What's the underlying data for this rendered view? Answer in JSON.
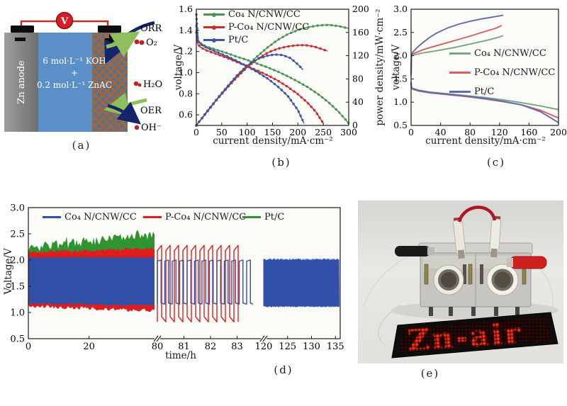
{
  "figure": {
    "captions": {
      "a": "(a)",
      "b": "(b)",
      "c": "(c)",
      "d": "(d)",
      "e": "(e)"
    }
  },
  "panel_a": {
    "anode_label": "Zn anode",
    "voltmeter_label": "V",
    "electrolyte": [
      "6 mol·L⁻¹ KOH",
      "+",
      "0.2 mol·L⁻¹ ZnAC"
    ],
    "labels": {
      "orr": "ORR",
      "o2": "O₂",
      "h2o": "H₂O",
      "oer": "OER",
      "oh": "OH⁻"
    },
    "colors": {
      "anode": "#8d8d8d",
      "electrolyte": "#5b8fc8",
      "mesh_bg": "#4b749c",
      "mesh_fiber": "#a2663c",
      "wire": "#c03028",
      "meter": "#d41f26",
      "arrow_green": "#8fbf5c",
      "arrow_navy": "#16246b",
      "dot_red": "#c31f1f"
    }
  },
  "chart_data": [
    {
      "id": "b",
      "type": "line",
      "xlabel": "current density/mA·cm⁻²",
      "ylabel": "voltage/V",
      "y2label": "power density/mW·cm⁻²",
      "xlim": [
        0,
        300
      ],
      "ylim": [
        0.5,
        1.6
      ],
      "y2lim": [
        0,
        200
      ],
      "x_ticks": [
        "0",
        "50",
        "100",
        "150",
        "200",
        "250",
        "300"
      ],
      "y_ticks": [
        "0.6",
        "0.8",
        "1.0",
        "1.2",
        "1.4",
        "1.6"
      ],
      "y2_ticks": [
        "0",
        "40",
        "80",
        "120",
        "160",
        "200"
      ],
      "legend": [
        "Co₄ N/CNW/CC",
        "P-Co₄ N/CNW/CC",
        "Pt/C"
      ],
      "colors": [
        "#4a9450",
        "#cc2b2b",
        "#3c55a5"
      ],
      "series": [
        {
          "name": "Co₄ N/CNW/CC voltage",
          "axis": "y",
          "color": "#4a9450",
          "points": [
            [
              0,
              1.44
            ],
            [
              3,
              1.31
            ],
            [
              8,
              1.28
            ],
            [
              20,
              1.245
            ],
            [
              40,
              1.215
            ],
            [
              60,
              1.185
            ],
            [
              80,
              1.15
            ],
            [
              100,
              1.12
            ],
            [
              120,
              1.085
            ],
            [
              140,
              1.05
            ],
            [
              160,
              1.01
            ],
            [
              180,
              0.965
            ],
            [
              200,
              0.915
            ],
            [
              220,
              0.86
            ],
            [
              240,
              0.795
            ],
            [
              260,
              0.72
            ],
            [
              280,
              0.63
            ],
            [
              300,
              0.52
            ]
          ]
        },
        {
          "name": "P-Co₄ N/CNW/CC voltage",
          "axis": "y",
          "color": "#cc2b2b",
          "points": [
            [
              0,
              1.38
            ],
            [
              3,
              1.27
            ],
            [
              8,
              1.24
            ],
            [
              20,
              1.21
            ],
            [
              40,
              1.175
            ],
            [
              60,
              1.14
            ],
            [
              80,
              1.1
            ],
            [
              100,
              1.06
            ],
            [
              120,
              1.02
            ],
            [
              140,
              0.975
            ],
            [
              160,
              0.925
            ],
            [
              180,
              0.865
            ],
            [
              200,
              0.795
            ],
            [
              220,
              0.71
            ],
            [
              235,
              0.63
            ],
            [
              250,
              0.52
            ]
          ]
        },
        {
          "name": "Pt/C voltage",
          "axis": "y",
          "color": "#3c55a5",
          "points": [
            [
              0,
              1.55
            ],
            [
              3,
              1.3
            ],
            [
              8,
              1.27
            ],
            [
              20,
              1.235
            ],
            [
              40,
              1.195
            ],
            [
              60,
              1.155
            ],
            [
              80,
              1.11
            ],
            [
              100,
              1.06
            ],
            [
              120,
              1.005
            ],
            [
              140,
              0.945
            ],
            [
              160,
              0.87
            ],
            [
              180,
              0.78
            ],
            [
              200,
              0.645
            ],
            [
              212,
              0.52
            ]
          ]
        },
        {
          "name": "Co₄ N/CNW/CC power",
          "axis": "y2",
          "color": "#4a9450",
          "points": [
            [
              0,
              0
            ],
            [
              20,
              22
            ],
            [
              40,
              44
            ],
            [
              60,
              64
            ],
            [
              80,
              84
            ],
            [
              100,
              102
            ],
            [
              120,
              119
            ],
            [
              140,
              134
            ],
            [
              160,
              147
            ],
            [
              180,
              157
            ],
            [
              200,
              164
            ],
            [
              220,
              169
            ],
            [
              240,
              172
            ],
            [
              260,
              173
            ],
            [
              280,
              171
            ],
            [
              300,
              167
            ]
          ]
        },
        {
          "name": "P-Co₄ N/CNW/CC power",
          "axis": "y2",
          "color": "#cc2b2b",
          "points": [
            [
              0,
              0
            ],
            [
              20,
              22
            ],
            [
              40,
              44
            ],
            [
              60,
              64
            ],
            [
              80,
              83
            ],
            [
              100,
              100
            ],
            [
              120,
              114
            ],
            [
              140,
              125
            ],
            [
              160,
              132
            ],
            [
              180,
              136
            ],
            [
              200,
              138
            ],
            [
              215,
              138
            ],
            [
              230,
              136
            ],
            [
              245,
              132
            ],
            [
              258,
              128
            ]
          ]
        },
        {
          "name": "Pt/C power",
          "axis": "y2",
          "color": "#3c55a5",
          "points": [
            [
              0,
              0
            ],
            [
              20,
              23
            ],
            [
              40,
              45
            ],
            [
              60,
              66
            ],
            [
              80,
              86
            ],
            [
              100,
              103
            ],
            [
              120,
              114
            ],
            [
              140,
              120
            ],
            [
              155,
              122
            ],
            [
              170,
              121
            ],
            [
              185,
              116
            ],
            [
              200,
              105
            ],
            [
              210,
              96
            ]
          ]
        }
      ]
    },
    {
      "id": "c",
      "type": "line",
      "xlabel": "current density/mA·cm⁻²",
      "ylabel": "voltage/V",
      "xlim": [
        0,
        200
      ],
      "ylim": [
        0.5,
        3.0
      ],
      "x_ticks": [
        "0",
        "40",
        "80",
        "120",
        "160",
        "200"
      ],
      "y_ticks": [
        "0.5",
        "1.0",
        "1.5",
        "2.0",
        "2.5",
        "3.0"
      ],
      "legend": [
        "Co₄ N/CNW/CC",
        "P-Co₄ N/CNW/CC",
        "Pt/C"
      ],
      "colors": [
        "#78a87a",
        "#d95f5f",
        "#5f6ab0"
      ],
      "series": [
        {
          "name": "Co₄ N/CNW/CC charge",
          "color": "#78a87a",
          "points": [
            [
              0,
              1.55
            ],
            [
              0.5,
              1.98
            ],
            [
              2,
              2.01
            ],
            [
              10,
              2.04
            ],
            [
              20,
              2.07
            ],
            [
              40,
              2.12
            ],
            [
              60,
              2.18
            ],
            [
              80,
              2.25
            ],
            [
              100,
              2.32
            ],
            [
              115,
              2.38
            ],
            [
              125,
              2.43
            ]
          ]
        },
        {
          "name": "P-Co₄ N/CNW/CC charge",
          "color": "#d95f5f",
          "points": [
            [
              0,
              1.6
            ],
            [
              0.5,
              2.0
            ],
            [
              2,
              2.04
            ],
            [
              10,
              2.09
            ],
            [
              20,
              2.15
            ],
            [
              40,
              2.24
            ],
            [
              60,
              2.33
            ],
            [
              80,
              2.42
            ],
            [
              100,
              2.52
            ],
            [
              115,
              2.59
            ],
            [
              123,
              2.65
            ]
          ]
        },
        {
          "name": "Pt/C charge",
          "color": "#5f6ab0",
          "points": [
            [
              0,
              1.6
            ],
            [
              0.5,
              2.0
            ],
            [
              2,
              2.07
            ],
            [
              8,
              2.17
            ],
            [
              15,
              2.27
            ],
            [
              25,
              2.39
            ],
            [
              35,
              2.49
            ],
            [
              50,
              2.6
            ],
            [
              65,
              2.68
            ],
            [
              80,
              2.74
            ],
            [
              95,
              2.79
            ],
            [
              110,
              2.83
            ],
            [
              125,
              2.87
            ]
          ]
        },
        {
          "name": "Co₄ N/CNW/CC discharge",
          "color": "#78a87a",
          "points": [
            [
              0,
              1.44
            ],
            [
              0.5,
              1.33
            ],
            [
              2,
              1.3
            ],
            [
              10,
              1.26
            ],
            [
              25,
              1.22
            ],
            [
              50,
              1.18
            ],
            [
              75,
              1.14
            ],
            [
              100,
              1.1
            ],
            [
              125,
              1.05
            ],
            [
              150,
              0.99
            ],
            [
              175,
              0.92
            ],
            [
              200,
              0.84
            ]
          ]
        },
        {
          "name": "P-Co₄ N/CNW/CC discharge",
          "color": "#d95f5f",
          "points": [
            [
              0,
              1.42
            ],
            [
              0.5,
              1.31
            ],
            [
              2,
              1.28
            ],
            [
              10,
              1.24
            ],
            [
              25,
              1.2
            ],
            [
              50,
              1.16
            ],
            [
              75,
              1.12
            ],
            [
              100,
              1.07
            ],
            [
              125,
              1.01
            ],
            [
              150,
              0.94
            ],
            [
              175,
              0.83
            ],
            [
              200,
              0.66
            ]
          ]
        },
        {
          "name": "Pt/C discharge",
          "color": "#5f6ab0",
          "points": [
            [
              0,
              1.43
            ],
            [
              0.5,
              1.32
            ],
            [
              2,
              1.29
            ],
            [
              10,
              1.25
            ],
            [
              25,
              1.21
            ],
            [
              50,
              1.17
            ],
            [
              75,
              1.13
            ],
            [
              100,
              1.08
            ],
            [
              125,
              1.02
            ],
            [
              150,
              0.94
            ],
            [
              175,
              0.8
            ],
            [
              200,
              0.56
            ]
          ]
        }
      ]
    },
    {
      "id": "d",
      "type": "cycling",
      "xlabel": "time/h",
      "ylabel": "Voltage/V",
      "ylim": [
        0.5,
        3.0
      ],
      "y_ticks": [
        "0.5",
        "1.0",
        "1.5",
        "2.0",
        "2.5",
        "3.0"
      ],
      "segments": [
        {
          "xlim": [
            0,
            42.5
          ],
          "ticks": [
            [
              "0",
              0
            ],
            [
              "20",
              20
            ]
          ]
        },
        {
          "xlim": [
            80,
            84
          ],
          "ticks": [
            [
              "80",
              80
            ],
            [
              "81",
              81
            ],
            [
              "82",
              82
            ],
            [
              "83",
              83
            ]
          ]
        },
        {
          "xlim": [
            120,
            136
          ],
          "ticks": [
            [
              "120",
              120
            ],
            [
              "125",
              125
            ],
            [
              "130",
              130
            ],
            [
              "135",
              135
            ]
          ]
        }
      ],
      "legend": [
        "Co₄ N/CNW/CC",
        "P-Co₄ N/CNW/CC",
        "Pt/C"
      ],
      "colors": [
        "#3350a8",
        "#df1d1d",
        "#2f9330"
      ],
      "bands": [
        {
          "segment": 0,
          "series": "Pt/C",
          "color": "#2f9330",
          "top_start": 2.23,
          "top_end": 2.5,
          "bottom_start": 2.03,
          "bottom_end": 2.03,
          "jitter_top": 0.09,
          "jitter_bottom": 0.01,
          "spike": 0.12
        },
        {
          "segment": 0,
          "series": "P-Co₄ N/CNW/CC",
          "color": "#df1d1d",
          "top_start": 2.15,
          "top_end": 2.22,
          "bottom_start": 1.12,
          "bottom_end": 1.03,
          "jitter_top": 0.03,
          "jitter_bottom": 0.035,
          "spike": 0
        },
        {
          "segment": 0,
          "series": "Co₄ N/CNW/CC",
          "color": "#3350a8",
          "top_start": 2.05,
          "top_end": 2.05,
          "bottom_start": 1.17,
          "bottom_end": 1.14,
          "jitter_top": 0.012,
          "jitter_bottom": 0.02,
          "spike": 0
        }
      ],
      "waves": [
        {
          "series": "P-Co₄ N/CNW/CC",
          "color": "#df1d1d",
          "x_start": 80,
          "x_end": 83.04,
          "period": 0.32,
          "high": 2.28,
          "low": 0.82,
          "tilt": 0.1
        },
        {
          "series": "Co₄ N/CNW/CC",
          "color": "#3350a8",
          "x_start": 80,
          "x_end": 83.6,
          "period": 0.28,
          "high": 2.0,
          "low": 1.16,
          "tilt": 0.02
        }
      ],
      "dense": [
        {
          "series": "Co₄ N/CNW/CC",
          "color": "#3350a8",
          "x_start": 120,
          "x_end": 135.8,
          "high": 2.0,
          "low": 1.12,
          "step": 0.12
        }
      ]
    }
  ],
  "panel_e": {
    "led_text": "Zn-air"
  }
}
